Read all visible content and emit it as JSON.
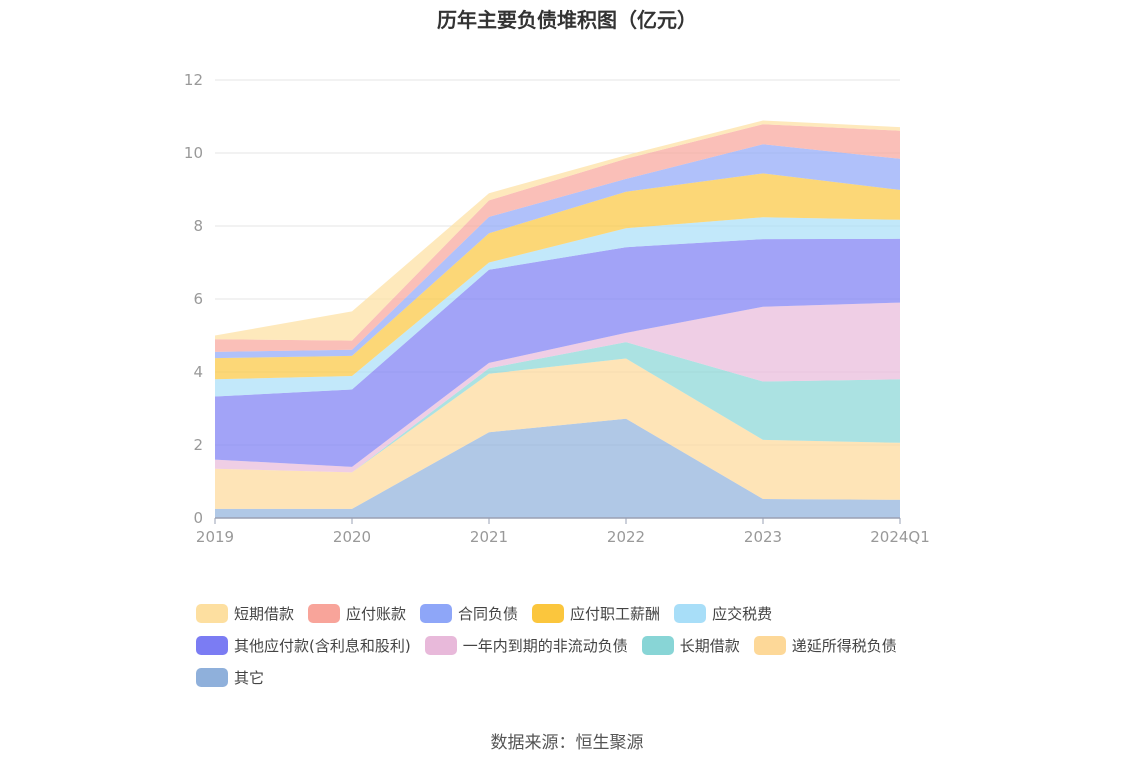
{
  "chart_data": {
    "type": "area",
    "stacked": true,
    "title": "历年主要负债堆积图（亿元）",
    "categories": [
      "2019",
      "2020",
      "2021",
      "2022",
      "2023",
      "2024Q1"
    ],
    "ylim": [
      0,
      12
    ],
    "yticks": [
      0,
      2,
      4,
      6,
      8,
      10,
      12
    ],
    "grid": true,
    "legend_position": "bottom",
    "series": [
      {
        "name": "其它",
        "color": "#8fb0db",
        "values": [
          0.25,
          0.25,
          2.35,
          2.72,
          0.52,
          0.5
        ]
      },
      {
        "name": "递延所得税负债",
        "color": "#fdd898",
        "values": [
          1.1,
          1.0,
          1.6,
          1.65,
          1.62,
          1.56
        ]
      },
      {
        "name": "长期借款",
        "color": "#88d5d6",
        "values": [
          0.0,
          0.0,
          0.15,
          0.45,
          1.6,
          1.74
        ]
      },
      {
        "name": "一年内到期的非流动负债",
        "color": "#e8b9da",
        "values": [
          0.25,
          0.15,
          0.15,
          0.25,
          2.05,
          2.1
        ]
      },
      {
        "name": "其他应付款(含利息和股利)",
        "color": "#7b7cf3",
        "values": [
          1.73,
          2.12,
          2.55,
          2.35,
          1.85,
          1.75
        ]
      },
      {
        "name": "应交税费",
        "color": "#a8def8",
        "values": [
          0.47,
          0.37,
          0.2,
          0.52,
          0.6,
          0.52
        ]
      },
      {
        "name": "应付职工薪酬",
        "color": "#fbc63d",
        "values": [
          0.58,
          0.55,
          0.8,
          1.0,
          1.2,
          0.82
        ]
      },
      {
        "name": "合同负债",
        "color": "#8ea6f8",
        "values": [
          0.17,
          0.17,
          0.45,
          0.35,
          0.8,
          0.85
        ]
      },
      {
        "name": "应付账款",
        "color": "#f8a49a",
        "values": [
          0.35,
          0.25,
          0.45,
          0.55,
          0.55,
          0.77
        ]
      },
      {
        "name": "短期借款",
        "color": "#fddfa0",
        "values": [
          0.1,
          0.8,
          0.2,
          0.1,
          0.1,
          0.1
        ]
      }
    ],
    "legend_order": [
      "短期借款",
      "应付账款",
      "合同负债",
      "应付职工薪酬",
      "应交税费",
      "其他应付款(含利息和股利)",
      "一年内到期的非流动负债",
      "长期借款",
      "递延所得税负债",
      "其它"
    ]
  },
  "source_note": "数据来源：恒生聚源"
}
